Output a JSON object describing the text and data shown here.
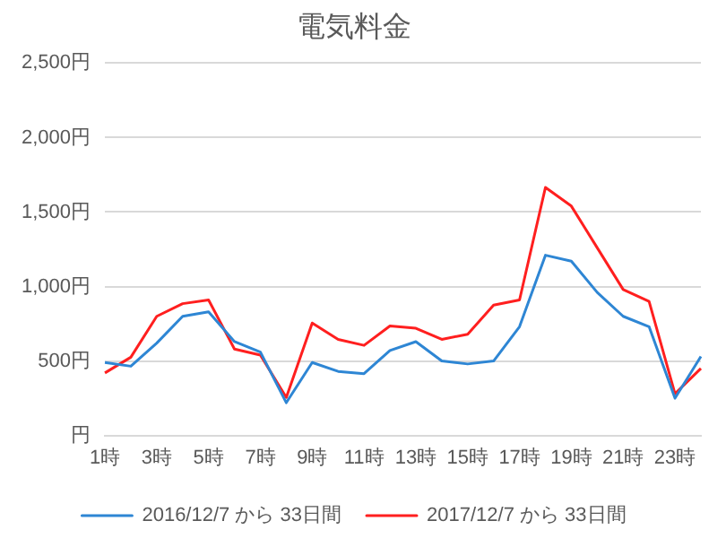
{
  "chart_data": {
    "type": "line",
    "title": "電気料金",
    "categories": [
      "1時",
      null,
      "3時",
      null,
      "5時",
      null,
      "7時",
      null,
      "9時",
      null,
      "11時",
      null,
      "13時",
      null,
      "15時",
      null,
      "17時",
      null,
      "19時",
      null,
      "21時",
      null,
      "23時",
      null
    ],
    "series": [
      {
        "name": "2016/12/7 から 33日間",
        "color": "#2e86d4",
        "values": [
          490,
          465,
          620,
          800,
          830,
          630,
          560,
          220,
          490,
          430,
          415,
          570,
          630,
          500,
          480,
          500,
          730,
          1210,
          1170,
          960,
          800,
          730,
          250,
          530
        ]
      },
      {
        "name": "2017/12/7 から 33日間",
        "color": "#ff1f1f",
        "values": [
          420,
          525,
          800,
          885,
          910,
          580,
          540,
          255,
          755,
          645,
          605,
          735,
          720,
          645,
          680,
          875,
          910,
          1665,
          1540,
          1260,
          980,
          900,
          280,
          450
        ]
      }
    ],
    "ylim": [
      0,
      2500
    ],
    "yticks": [
      {
        "value": 0,
        "label": "円"
      },
      {
        "value": 500,
        "label": "500円"
      },
      {
        "value": 1000,
        "label": "1,000円"
      },
      {
        "value": 1500,
        "label": "1,500円"
      },
      {
        "value": 2000,
        "label": "2,000円"
      },
      {
        "value": 2500,
        "label": "2,500円"
      }
    ],
    "grid": "y",
    "legend": "bottom",
    "marker": "none",
    "line_style": "solid"
  }
}
